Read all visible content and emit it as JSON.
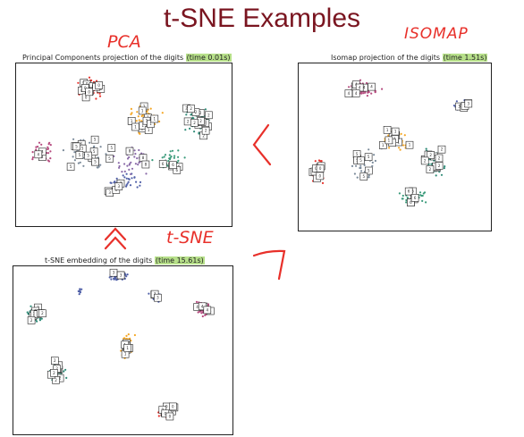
{
  "slide_title": "t-SNE Examples",
  "panels": {
    "pca": {
      "title_main": "Principal Components projection of the digits ",
      "title_time": "(time 0.01s)"
    },
    "isomap": {
      "title_main": "Isomap projection of the digits ",
      "title_time": "(time 1.51s)"
    },
    "tsne": {
      "title_main": "t-SNE embedding of the digits ",
      "title_time": "(time 15.61s)"
    }
  },
  "annotations": {
    "pca": "PCA",
    "isomap": "ISOMAP",
    "tsne": "t-SNE"
  },
  "colors": {
    "title": "#7a1520",
    "annotation": "#e8302a",
    "time_highlight": "#b7e08a",
    "digit_colors": [
      "#e8302a",
      "#f5a623",
      "#2e8b77",
      "#5060a8",
      "#b54a7e",
      "#7a8a9a",
      "#3a9a7a",
      "#d86a2a",
      "#8a6aa8",
      "#4a7a5a"
    ]
  }
}
